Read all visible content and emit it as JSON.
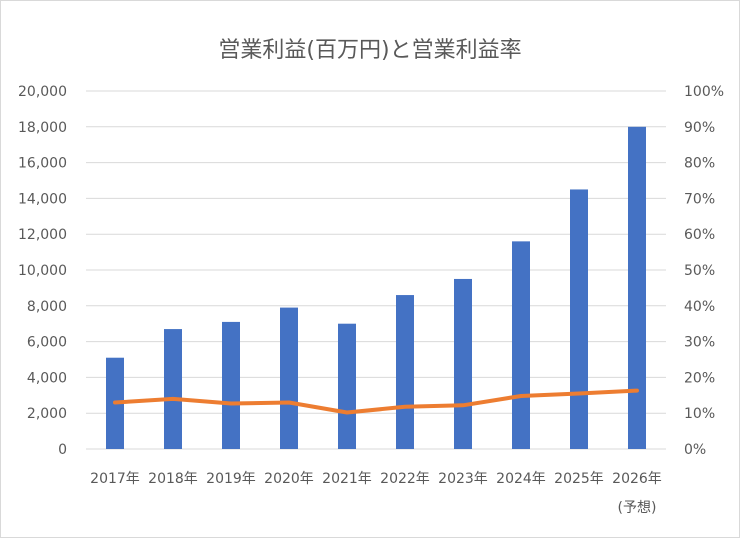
{
  "chart_data": {
    "type": "bar+line",
    "title": "営業利益(百万円)と営業利益率",
    "categories": [
      "2017年",
      "2018年",
      "2019年",
      "2020年",
      "2021年",
      "2022年",
      "2023年",
      "2024年",
      "2025年",
      "2026年"
    ],
    "category_notes": [
      "",
      "",
      "",
      "",
      "",
      "",
      "",
      "",
      "",
      "(予想)"
    ],
    "series": [
      {
        "type": "bar",
        "axis": "left",
        "color": "#4472c4",
        "values": [
          5100,
          6700,
          7100,
          7900,
          7000,
          8600,
          9500,
          11600,
          14500,
          18000
        ]
      },
      {
        "type": "line",
        "axis": "right",
        "color": "#ed7d31",
        "values": [
          13,
          14,
          12.7,
          13,
          10.2,
          11.8,
          12.2,
          14.8,
          15.5,
          16.3
        ]
      }
    ],
    "y_left": {
      "min": 0,
      "max": 20000,
      "step": 2000,
      "tick_labels": [
        "0",
        "2,000",
        "4,000",
        "6,000",
        "8,000",
        "10,000",
        "12,000",
        "14,000",
        "16,000",
        "18,000",
        "20,000"
      ]
    },
    "y_right": {
      "min": 0,
      "max": 100,
      "step": 10,
      "tick_labels": [
        "0%",
        "10%",
        "20%",
        "30%",
        "40%",
        "50%",
        "60%",
        "70%",
        "80%",
        "90%",
        "100%"
      ]
    },
    "grid": true,
    "legend": "none"
  }
}
